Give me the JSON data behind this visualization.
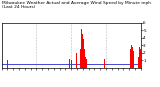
{
  "title": "Milwaukee Weather Actual and Average Wind Speed by Minute mph (Last 24 Hours)",
  "title_fontsize": 3.2,
  "title_color": "#000000",
  "bg_color": "#ffffff",
  "plot_bg_color": "#ffffff",
  "n_points": 1440,
  "avg_wind": 0.5,
  "avg_color": "#0000cc",
  "actual_color": "#ff0000",
  "ylim": [
    0,
    6
  ],
  "yticks": [
    1,
    2,
    3,
    4,
    5,
    6
  ],
  "grid_color": "#bbbbbb",
  "grid_style": "--",
  "spine_color": "#000000",
  "tick_fontsize": 3.0,
  "avg_lw": 0.5,
  "bar_width": 1.0,
  "wind_data": [
    [
      60,
      62,
      1.0
    ],
    [
      700,
      705,
      1.2
    ],
    [
      720,
      725,
      1.0
    ],
    [
      740,
      743,
      1.3
    ],
    [
      760,
      763,
      1.8
    ],
    [
      775,
      778,
      2.0
    ],
    [
      790,
      795,
      1.5
    ],
    [
      800,
      802,
      1.2
    ],
    [
      815,
      817,
      2.5
    ],
    [
      820,
      822,
      3.0
    ],
    [
      825,
      826,
      5.8
    ],
    [
      826,
      832,
      5.2
    ],
    [
      832,
      840,
      4.5
    ],
    [
      840,
      848,
      3.8
    ],
    [
      848,
      856,
      3.2
    ],
    [
      856,
      862,
      2.5
    ],
    [
      862,
      868,
      2.0
    ],
    [
      868,
      875,
      1.5
    ],
    [
      875,
      882,
      1.2
    ],
    [
      900,
      905,
      1.0
    ],
    [
      1060,
      1065,
      1.2
    ],
    [
      1070,
      1075,
      1.0
    ],
    [
      1100,
      1105,
      0.8
    ],
    [
      1330,
      1335,
      2.5
    ],
    [
      1340,
      1345,
      3.0
    ],
    [
      1350,
      1355,
      2.8
    ],
    [
      1360,
      1365,
      2.2
    ],
    [
      1390,
      1395,
      1.8
    ],
    [
      1400,
      1405,
      2.0
    ],
    [
      1410,
      1420,
      1.5
    ],
    [
      1420,
      1430,
      2.8
    ],
    [
      1430,
      1435,
      3.2
    ],
    [
      1435,
      1440,
      2.5
    ]
  ]
}
